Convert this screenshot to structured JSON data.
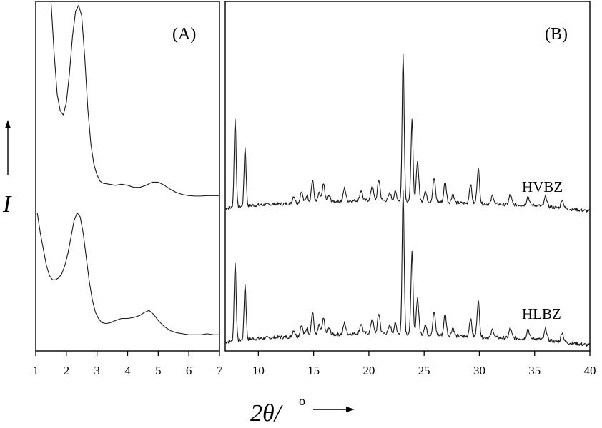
{
  "chart_data": [
    {
      "type": "line",
      "panel_label": "(A)",
      "xlabel": "2θ/°",
      "ylabel": "I",
      "xlim": [
        1,
        7
      ],
      "ticks": [
        1,
        2,
        3,
        4,
        5,
        6,
        7
      ],
      "tick_labels": [
        "1",
        "2",
        "3",
        "4",
        "5",
        "6",
        "7"
      ],
      "y_ticks": false,
      "grid": false,
      "series": [
        {
          "offset": "upper",
          "x": [
            1.5,
            1.6,
            1.7,
            1.8,
            1.9,
            2.0,
            2.1,
            2.2,
            2.3,
            2.4,
            2.5,
            2.6,
            2.7,
            2.8,
            2.9,
            3.0,
            3.1,
            3.2,
            3.4,
            3.6,
            3.8,
            4.0,
            4.2,
            4.4,
            4.6,
            4.8,
            5.0,
            5.2,
            5.4,
            5.6,
            5.8,
            6.0,
            6.2,
            6.4,
            6.6,
            6.8,
            7.0
          ],
          "y": [
            1.05,
            0.72,
            0.52,
            0.44,
            0.42,
            0.48,
            0.62,
            0.8,
            0.92,
            0.95,
            0.9,
            0.7,
            0.45,
            0.28,
            0.18,
            0.13,
            0.1,
            0.09,
            0.085,
            0.08,
            0.085,
            0.08,
            0.07,
            0.07,
            0.08,
            0.095,
            0.095,
            0.08,
            0.06,
            0.045,
            0.035,
            0.03,
            0.028,
            0.028,
            0.03,
            0.03,
            0.03
          ]
        },
        {
          "offset": "lower",
          "x": [
            1.05,
            1.15,
            1.25,
            1.35,
            1.45,
            1.55,
            1.65,
            1.75,
            1.85,
            1.95,
            2.05,
            2.15,
            2.25,
            2.35,
            2.45,
            2.55,
            2.65,
            2.75,
            2.85,
            2.95,
            3.05,
            3.15,
            3.3,
            3.45,
            3.6,
            3.8,
            4.0,
            4.2,
            4.4,
            4.55,
            4.7,
            4.85,
            5.0,
            5.2,
            5.4,
            5.6,
            5.8,
            6.0,
            6.2,
            6.4,
            6.6,
            6.8,
            7.0
          ],
          "y": [
            0.62,
            0.52,
            0.44,
            0.36,
            0.31,
            0.29,
            0.29,
            0.3,
            0.32,
            0.36,
            0.42,
            0.5,
            0.58,
            0.62,
            0.6,
            0.52,
            0.4,
            0.28,
            0.19,
            0.13,
            0.1,
            0.08,
            0.075,
            0.08,
            0.09,
            0.1,
            0.1,
            0.105,
            0.115,
            0.13,
            0.14,
            0.12,
            0.09,
            0.06,
            0.04,
            0.03,
            0.025,
            0.02,
            0.02,
            0.02,
            0.025,
            0.02,
            0.02
          ]
        }
      ]
    },
    {
      "type": "line",
      "panel_label": "(B)",
      "xlabel": "2θ/°",
      "xlim": [
        7,
        40
      ],
      "ticks": [
        10,
        15,
        20,
        25,
        30,
        35,
        40
      ],
      "tick_labels": [
        "10",
        "15",
        "20",
        "25",
        "30",
        "35",
        "40"
      ],
      "y_ticks": false,
      "grid": false,
      "series": [
        {
          "name": "HVBZ",
          "offset": "upper",
          "baseline": [
            [
              7.0,
              0.02
            ],
            [
              9.5,
              0.04
            ],
            [
              15,
              0.06
            ],
            [
              20,
              0.075
            ],
            [
              24,
              0.07
            ],
            [
              30,
              0.05
            ],
            [
              35,
              0.04
            ],
            [
              40,
              0.0
            ]
          ],
          "peaks": [
            {
              "x": 7.9,
              "h": 0.6
            },
            {
              "x": 8.8,
              "h": 0.4
            },
            {
              "x": 13.2,
              "h": 0.05
            },
            {
              "x": 13.9,
              "h": 0.08
            },
            {
              "x": 14.4,
              "h": 0.05
            },
            {
              "x": 14.9,
              "h": 0.15
            },
            {
              "x": 15.5,
              "h": 0.06
            },
            {
              "x": 15.9,
              "h": 0.12
            },
            {
              "x": 16.4,
              "h": 0.04
            },
            {
              "x": 17.8,
              "h": 0.09
            },
            {
              "x": 19.3,
              "h": 0.07
            },
            {
              "x": 20.3,
              "h": 0.1
            },
            {
              "x": 20.9,
              "h": 0.14
            },
            {
              "x": 21.9,
              "h": 0.05
            },
            {
              "x": 22.4,
              "h": 0.06
            },
            {
              "x": 23.1,
              "h": 1.0
            },
            {
              "x": 23.9,
              "h": 0.55
            },
            {
              "x": 24.4,
              "h": 0.27
            },
            {
              "x": 25.1,
              "h": 0.07
            },
            {
              "x": 25.9,
              "h": 0.16
            },
            {
              "x": 26.9,
              "h": 0.14
            },
            {
              "x": 27.6,
              "h": 0.06
            },
            {
              "x": 29.2,
              "h": 0.13
            },
            {
              "x": 29.9,
              "h": 0.24
            },
            {
              "x": 31.2,
              "h": 0.06
            },
            {
              "x": 32.8,
              "h": 0.07
            },
            {
              "x": 34.4,
              "h": 0.06
            },
            {
              "x": 36.0,
              "h": 0.07
            },
            {
              "x": 37.5,
              "h": 0.06
            }
          ]
        },
        {
          "name": "HLBZ",
          "offset": "lower",
          "baseline": [
            [
              7.0,
              0.02
            ],
            [
              9.5,
              0.04
            ],
            [
              15,
              0.06
            ],
            [
              20,
              0.075
            ],
            [
              24,
              0.07
            ],
            [
              30,
              0.05
            ],
            [
              35,
              0.04
            ],
            [
              40,
              0.0
            ]
          ],
          "peaks": [
            {
              "x": 7.9,
              "h": 0.48
            },
            {
              "x": 8.8,
              "h": 0.34
            },
            {
              "x": 13.2,
              "h": 0.04
            },
            {
              "x": 13.9,
              "h": 0.07
            },
            {
              "x": 14.4,
              "h": 0.05
            },
            {
              "x": 14.9,
              "h": 0.14
            },
            {
              "x": 15.5,
              "h": 0.06
            },
            {
              "x": 15.9,
              "h": 0.1
            },
            {
              "x": 16.4,
              "h": 0.04
            },
            {
              "x": 17.8,
              "h": 0.07
            },
            {
              "x": 19.3,
              "h": 0.06
            },
            {
              "x": 20.3,
              "h": 0.09
            },
            {
              "x": 20.9,
              "h": 0.12
            },
            {
              "x": 21.9,
              "h": 0.05
            },
            {
              "x": 22.4,
              "h": 0.06
            },
            {
              "x": 23.1,
              "h": 0.88
            },
            {
              "x": 23.9,
              "h": 0.5
            },
            {
              "x": 24.4,
              "h": 0.22
            },
            {
              "x": 25.1,
              "h": 0.06
            },
            {
              "x": 25.9,
              "h": 0.14
            },
            {
              "x": 26.9,
              "h": 0.13
            },
            {
              "x": 27.6,
              "h": 0.05
            },
            {
              "x": 29.2,
              "h": 0.11
            },
            {
              "x": 29.9,
              "h": 0.22
            },
            {
              "x": 31.2,
              "h": 0.05
            },
            {
              "x": 32.8,
              "h": 0.06
            },
            {
              "x": 34.4,
              "h": 0.06
            },
            {
              "x": 36.0,
              "h": 0.07
            },
            {
              "x": 37.5,
              "h": 0.06
            }
          ]
        }
      ]
    }
  ],
  "labels": {
    "panel_a": "(A)",
    "panel_b": "(B)",
    "series_upper": "HVBZ",
    "series_lower": "HLBZ",
    "y_axis": "I",
    "x_axis_main": "2θ/",
    "x_axis_degree": "o"
  }
}
